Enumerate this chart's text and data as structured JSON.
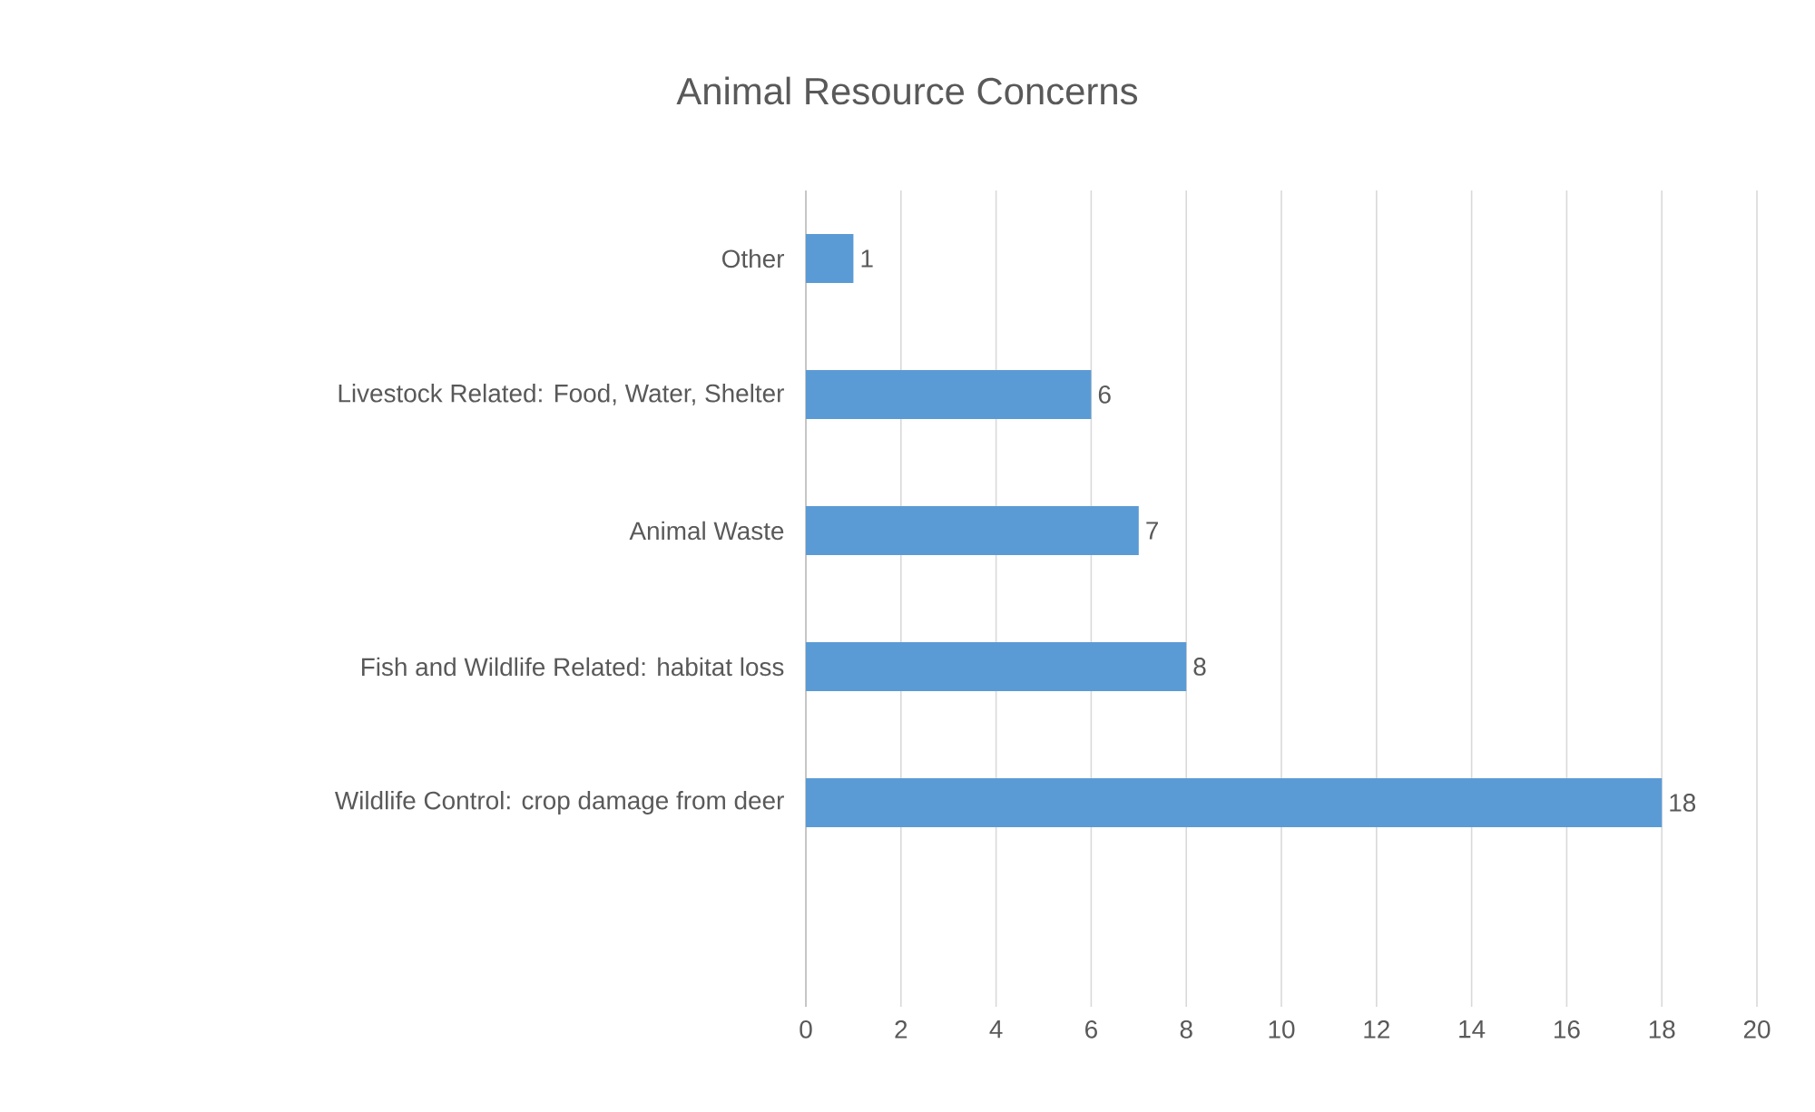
{
  "chart_data": {
    "type": "bar",
    "orientation": "horizontal",
    "title": "Animal Resource Concerns",
    "categories": [
      "Other",
      "Livestock Related: Food, Water, Shelter",
      "Animal Waste",
      "Fish and Wildlife Related: habitat loss",
      "Wildlife Control: crop damage from deer",
      null
    ],
    "values": [
      1,
      6,
      7,
      8,
      18,
      null
    ],
    "color": "#5b9bd5",
    "xlim": [
      0,
      20
    ],
    "xticks": [
      0,
      2,
      4,
      6,
      8,
      10,
      12,
      14,
      16,
      18,
      20
    ],
    "grid": "x",
    "data_labels": true
  }
}
